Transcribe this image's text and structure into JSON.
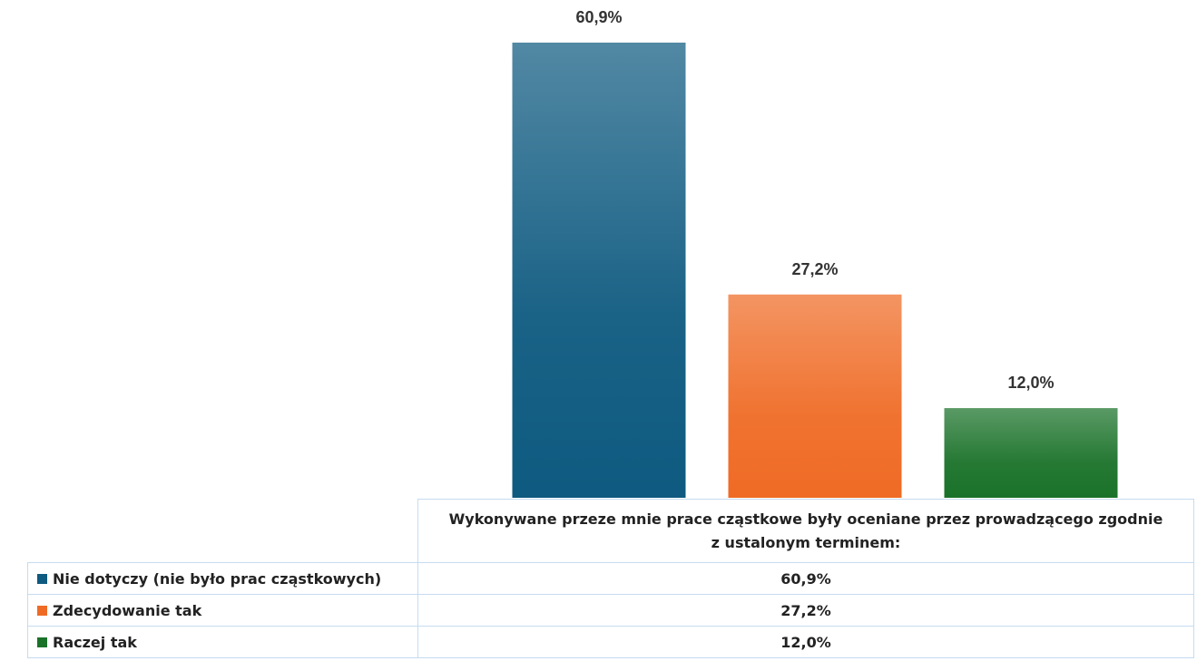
{
  "chart_data": {
    "type": "bar",
    "categories": [
      "Wykonywane przeze mnie prace cząstkowe były oceniane przez prowadzącego zgodnie z ustalonym terminem:"
    ],
    "series": [
      {
        "name": "Nie dotyczy (nie było prac cząstkowych)",
        "color": "#0e5a80",
        "values": [
          60.9
        ],
        "value_labels": [
          "60,9%"
        ]
      },
      {
        "name": "Zdecydowanie tak",
        "color": "#ef6b25",
        "values": [
          27.2
        ],
        "value_labels": [
          "27,2%"
        ]
      },
      {
        "name": "Raczej tak",
        "color": "#1a7229",
        "values": [
          12.0
        ],
        "value_labels": [
          "12,0%"
        ]
      }
    ],
    "ylim": [
      0,
      70
    ],
    "grid": false,
    "data_table": true
  }
}
